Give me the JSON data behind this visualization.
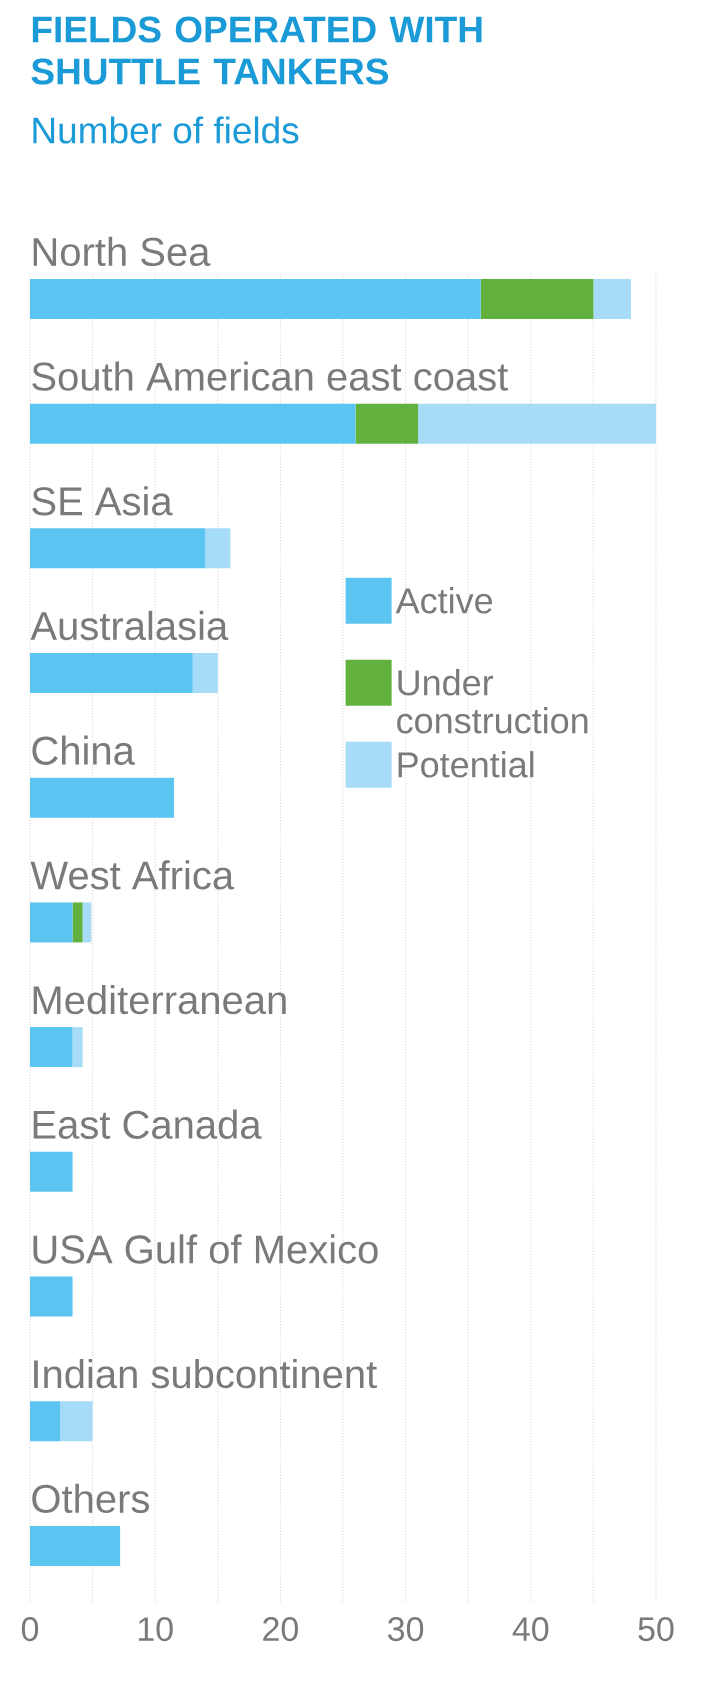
{
  "chart_data": {
    "type": "bar",
    "orientation": "horizontal",
    "stacked": true,
    "title": "FIELDS OPERATED WITH SHUTTLE TANKERS",
    "subtitle": "Number of fields",
    "categories": [
      "North Sea",
      "South American east coast",
      "SE Asia",
      "Australasia",
      "China",
      "West Africa",
      "Mediterranean",
      "East Canada",
      "USA Gulf of Mexico",
      "Indian subcontinent",
      "Others"
    ],
    "series": [
      {
        "name": "Active",
        "color": "#5bc4f1",
        "values": [
          36,
          26,
          14,
          13,
          11.5,
          3.4,
          3.4,
          3.4,
          3.4,
          2.4,
          7.2
        ]
      },
      {
        "name": "Under construction",
        "color": "#62b13f",
        "values": [
          9,
          5,
          0,
          0,
          0,
          0.8,
          0,
          0,
          0,
          0,
          0
        ]
      },
      {
        "name": "Potential",
        "color": "#a6dcf7",
        "values": [
          3,
          19,
          2,
          2,
          0,
          0.7,
          0.8,
          0,
          0,
          2.6,
          0
        ]
      }
    ],
    "xlim": [
      0,
      50
    ],
    "xticks": [
      0,
      {
        "value": 5,
        "label": null
      },
      10,
      {
        "value": 15,
        "label": null
      },
      20,
      {
        "value": 25,
        "label": null
      },
      30,
      {
        "value": 35,
        "label": null
      },
      40,
      {
        "value": 45,
        "label": null
      },
      50
    ],
    "grid": "x",
    "legend": "right"
  }
}
